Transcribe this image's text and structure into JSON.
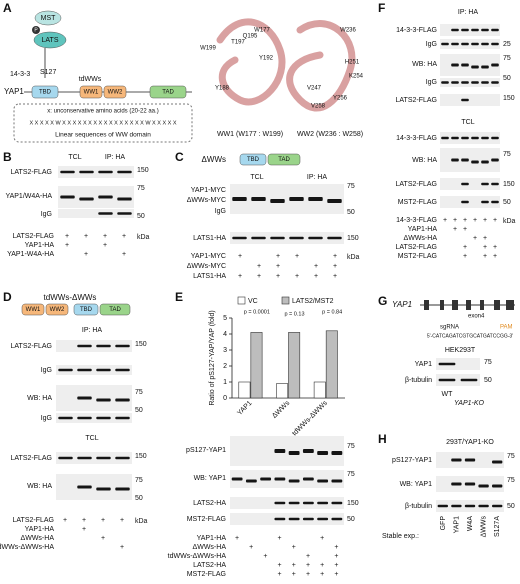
{
  "panels": {
    "A": {
      "label": "A",
      "mst": "MST",
      "lats": "LATS",
      "phospho": "P",
      "s127": "S127",
      "yap": "YAP1",
      "tbd": "TBD",
      "ww1": "WW1",
      "ww2": "WW2",
      "tad": "TAD",
      "tdwws": "tdWWs",
      "p1433": "14-3-3",
      "note": "x: unconservative amino acids (20-22 aa.)",
      "sequence": "X X X X X W X X X X X X X X X X X X X X X X W X X X X X",
      "caption": "Linear sequences of WW domain",
      "residues": [
        "W199",
        "Y188",
        "Q195",
        "W177",
        "T197",
        "Y192",
        "W236",
        "H251",
        "K254",
        "V247",
        "V258",
        "Y256"
      ],
      "ww1_caption": "WW1 (W177 : W199)",
      "ww2_caption": "WW2 (W236 : W258)"
    },
    "B": {
      "label": "B",
      "headers": [
        "TCL",
        "IP: HA"
      ],
      "rows": [
        "LATS2-FLAG",
        "YAP1/W4A-HA",
        "IgG"
      ],
      "markers": [
        "150",
        "75",
        "50"
      ],
      "kda": "kDa",
      "signs": [
        {
          "name": "LATS2-FLAG",
          "signs": [
            "+",
            "+",
            "+",
            "+"
          ]
        },
        {
          "name": "YAP1-HA",
          "signs": [
            "+",
            null,
            "+",
            null
          ]
        },
        {
          "name": "YAP1-W4A-HA",
          "signs": [
            null,
            "+",
            null,
            "+"
          ]
        }
      ]
    },
    "C": {
      "label": "C",
      "construct": "ΔWWs",
      "tbd": "TBD",
      "tad": "TAD",
      "headers": [
        "TCL",
        "IP: HA"
      ],
      "rows": [
        "YAP1-MYC",
        "ΔWWs-MYC",
        "IgG",
        "LATS1-HA"
      ],
      "markers": [
        "75",
        "50",
        "150"
      ],
      "kda": "kDa",
      "signs": [
        {
          "name": "YAP1-MYC",
          "signs": [
            "+",
            null,
            "+",
            "+",
            null,
            "+"
          ]
        },
        {
          "name": "ΔWWs-MYC",
          "signs": [
            null,
            "+",
            "+",
            null,
            "+",
            "+"
          ]
        },
        {
          "name": "LATS1-HA",
          "signs": [
            "+",
            "+",
            "+",
            "+",
            "+",
            "+"
          ]
        }
      ]
    },
    "D": {
      "label": "D",
      "construct": "tdWWs-ΔWWs",
      "ww1": "WW1",
      "ww2": "WW2",
      "tbd": "TBD",
      "tad": "TAD",
      "ip": "IP: HA",
      "tcl": "TCL",
      "rows": [
        "LATS2-FLAG",
        "IgG",
        "WB: HA",
        "IgG",
        "LATS2-FLAG",
        "WB: HA"
      ],
      "markers": [
        "150",
        "75",
        "50",
        "150",
        "75",
        "50"
      ],
      "kda": "kDa",
      "signs": [
        {
          "name": "LATS2-FLAG",
          "signs": [
            "+",
            "+",
            "+",
            "+"
          ]
        },
        {
          "name": "YAP1-HA",
          "signs": [
            null,
            "+",
            null,
            null
          ]
        },
        {
          "name": "ΔWWs-HA",
          "signs": [
            null,
            null,
            "+",
            null
          ]
        },
        {
          "name": "tdWWs-ΔWWs-HA",
          "signs": [
            null,
            null,
            null,
            "+"
          ]
        }
      ]
    },
    "E": {
      "label": "E",
      "rows": [
        "pS127-YAP1",
        "WB: YAP1",
        "LATS2-HA",
        "MST2-FLAG"
      ],
      "markers": [
        "75",
        "75",
        "150",
        "50"
      ],
      "signs": [
        {
          "name": "YAP1-HA",
          "signs": [
            "+",
            null,
            null,
            "+",
            null,
            null,
            "+",
            null
          ]
        },
        {
          "name": "ΔWWs-HA",
          "signs": [
            null,
            "+",
            null,
            null,
            "+",
            null,
            null,
            "+"
          ]
        },
        {
          "name": "tdWWs-ΔWWs-HA",
          "signs": [
            null,
            null,
            "+",
            null,
            null,
            "+",
            null,
            "+"
          ]
        },
        {
          "name": "LATS2-HA",
          "signs": [
            null,
            null,
            null,
            "+",
            "+",
            "+",
            "+",
            "+"
          ]
        },
        {
          "name": "MST2-FLAG",
          "signs": [
            null,
            null,
            null,
            "+",
            "+",
            "+",
            "+",
            "+"
          ]
        }
      ]
    },
    "F": {
      "label": "F",
      "ip": "IP: HA",
      "tcl": "TCL",
      "rows": [
        "14-3-3-FLAG",
        "IgG",
        "WB: HA",
        "IgG",
        "LATS2-FLAG",
        "14-3-3-FLAG",
        "WB: HA",
        "LATS2-FLAG",
        "MST2-FLAG"
      ],
      "markers": [
        "25",
        "75",
        "50",
        "150",
        "75",
        "150",
        "50"
      ],
      "kda": "kDa",
      "signs": [
        {
          "name": "14-3-3-FLAG",
          "signs": [
            "+",
            "+",
            "+",
            "+",
            "+",
            "+"
          ]
        },
        {
          "name": "YAP1-HA",
          "signs": [
            null,
            "+",
            "+",
            null,
            null,
            null
          ]
        },
        {
          "name": "ΔWWs-HA",
          "signs": [
            null,
            null,
            null,
            "+",
            "+",
            null
          ]
        },
        {
          "name": "LATS2-FLAG",
          "signs": [
            null,
            null,
            "+",
            null,
            "+",
            "+"
          ]
        },
        {
          "name": "MST2-FLAG",
          "signs": [
            null,
            null,
            "+",
            null,
            "+",
            "+"
          ]
        }
      ]
    },
    "G": {
      "label": "G",
      "gene": "YAP1",
      "exon": "exon4",
      "sgrna": "sgRNA",
      "pam": "PAM",
      "sequence": "5'-CATCAGATCGTGCATGATCCGG-3'",
      "cell": "HEK293T",
      "rows": [
        "YAP1",
        "β-tubulin"
      ],
      "markers": [
        "75",
        "50"
      ],
      "lanes": [
        "WT",
        "YAP1-KO"
      ]
    },
    "H": {
      "label": "H",
      "cell": "293T/YAP1-KO",
      "rows": [
        "pS127-YAP1",
        "WB: YAP1",
        "β-tubulin"
      ],
      "markers": [
        "75",
        "75",
        "50"
      ],
      "stable": "Stable exp.:",
      "lanes": [
        "GFP",
        "YAP1",
        "W4A",
        "ΔWWs",
        "S127A"
      ]
    }
  },
  "chart_data": {
    "type": "bar",
    "ylabel": "Ratio of pS127-YAP/YAP (fold)",
    "categories": [
      "YAP1",
      "ΔWWs",
      "tdWWs-ΔWWs"
    ],
    "series": [
      {
        "name": "VC",
        "color": "#ffffff",
        "values": [
          1.0,
          0.9,
          1.0
        ]
      },
      {
        "name": "LATS2/MST2",
        "color": "#bdbdbd",
        "values": [
          4.1,
          4.1,
          4.2
        ]
      }
    ],
    "ylim": [
      0,
      5
    ],
    "yticks": [
      0,
      1,
      2,
      3,
      4,
      5
    ],
    "annotations": [
      "p = 0.0001",
      "p = 0.13",
      "p = 0.84"
    ]
  }
}
